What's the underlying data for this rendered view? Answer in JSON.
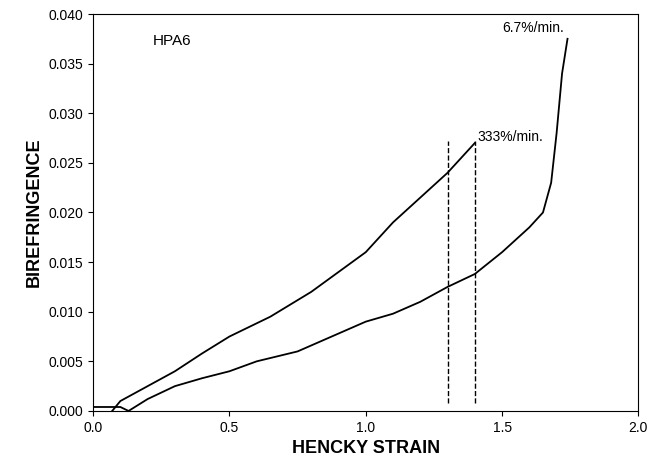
{
  "chart_data": {
    "type": "line",
    "x_label": "HENCKY STRAIN",
    "y_label": "BIREFRINGENCE",
    "annotations": [
      "HPA6",
      "333%/min.",
      "6.7%/min."
    ],
    "vlines": [
      1.3,
      1.4
    ],
    "series": [
      {
        "color": "#000000",
        "line_style": "solid",
        "x": [
          0.07,
          0.1,
          0.2,
          0.3,
          0.4,
          0.5,
          0.65,
          0.8,
          0.9,
          1.0,
          1.1,
          1.2,
          1.3,
          1.35,
          1.4
        ],
        "values": [
          0.0,
          0.001,
          0.0025,
          0.004,
          0.0058,
          0.0075,
          0.0095,
          0.012,
          0.014,
          0.016,
          0.019,
          0.0215,
          0.024,
          0.0255,
          0.027
        ]
      },
      {
        "color": "#000000",
        "line_style": "solid",
        "x": [
          0.0,
          0.1,
          0.13,
          0.2,
          0.3,
          0.4,
          0.5,
          0.6,
          0.75,
          0.9,
          1.0,
          1.1,
          1.2,
          1.3,
          1.4,
          1.5,
          1.6,
          1.65,
          1.68,
          1.7,
          1.72,
          1.74
        ],
        "values": [
          0.0004,
          0.0004,
          0.0,
          0.0012,
          0.0025,
          0.0033,
          0.004,
          0.005,
          0.006,
          0.0078,
          0.009,
          0.0098,
          0.011,
          0.0125,
          0.0138,
          0.016,
          0.0185,
          0.02,
          0.023,
          0.028,
          0.034,
          0.0375
        ]
      }
    ],
    "xlim": [
      0.0,
      2.0
    ],
    "xticks": [
      {
        "value": 0.0,
        "label": "0.0"
      },
      {
        "value": 0.5,
        "label": "0.5"
      },
      {
        "value": 1.0,
        "label": "1.0"
      },
      {
        "value": 1.5,
        "label": "1.5"
      },
      {
        "value": 2.0,
        "label": "2.0"
      }
    ],
    "ylim": [
      0.0,
      0.04
    ],
    "yticks": [
      {
        "value": 0.0,
        "label": "0.000"
      },
      {
        "value": 0.005,
        "label": "0.005"
      },
      {
        "value": 0.01,
        "label": "0.010"
      },
      {
        "value": 0.015,
        "label": "0.015"
      },
      {
        "value": 0.02,
        "label": "0.020"
      },
      {
        "value": 0.025,
        "label": "0.025"
      },
      {
        "value": 0.03,
        "label": "0.030"
      },
      {
        "value": 0.035,
        "label": "0.035"
      },
      {
        "value": 0.04,
        "label": "0.040"
      }
    ],
    "grid": false
  }
}
